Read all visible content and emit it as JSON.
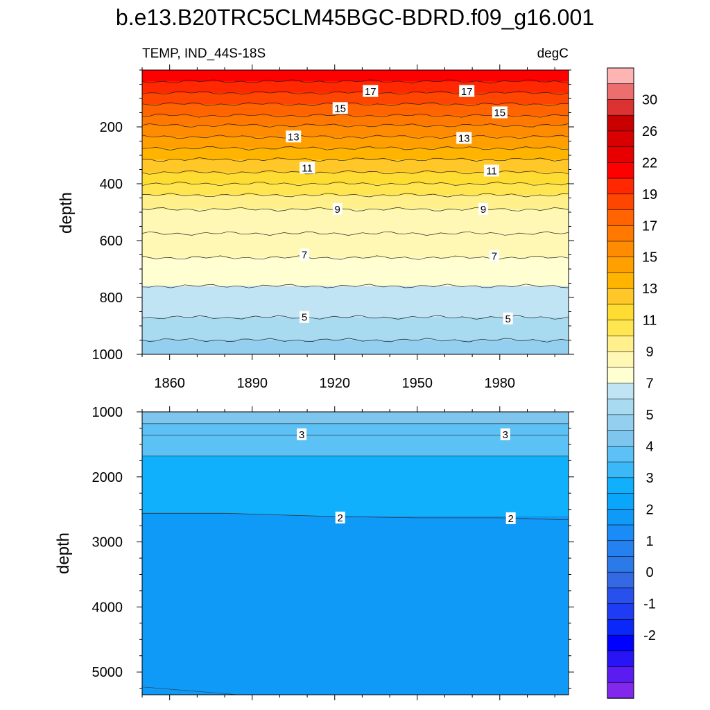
{
  "title": "b.e13.B20TRC5CLM45BGC-BDRD.f09_g16.001",
  "chart_data": [
    {
      "type": "heatmap",
      "panel": "upper",
      "variable_label": "TEMP, IND_44S-18S",
      "units_label": "degC",
      "ylabel": "depth",
      "xlim": [
        1850,
        2005
      ],
      "ylim": [
        0,
        1000
      ],
      "y_inverted": true,
      "x_ticks": [
        1860,
        1890,
        1920,
        1950,
        1980
      ],
      "y_ticks": [
        200,
        400,
        600,
        800,
        1000
      ],
      "fill_bands": [
        {
          "top": 0,
          "bottom": 40,
          "value": 19.5
        },
        {
          "top": 40,
          "bottom": 80,
          "value": 18.5
        },
        {
          "top": 80,
          "bottom": 120,
          "value": 17.5
        },
        {
          "top": 120,
          "bottom": 160,
          "value": 16.5
        },
        {
          "top": 160,
          "bottom": 195,
          "value": 15.5
        },
        {
          "top": 195,
          "bottom": 235,
          "value": 14.5
        },
        {
          "top": 235,
          "bottom": 275,
          "value": 13.5
        },
        {
          "top": 275,
          "bottom": 315,
          "value": 12.5
        },
        {
          "top": 315,
          "bottom": 360,
          "value": 11.5
        },
        {
          "top": 360,
          "bottom": 400,
          "value": 10.5
        },
        {
          "top": 400,
          "bottom": 440,
          "value": 9.5
        },
        {
          "top": 440,
          "bottom": 490,
          "value": 8.75
        },
        {
          "top": 490,
          "bottom": 575,
          "value": 8.0
        },
        {
          "top": 575,
          "bottom": 660,
          "value": 7.5
        },
        {
          "top": 660,
          "bottom": 760,
          "value": 6.5
        },
        {
          "top": 760,
          "bottom": 870,
          "value": 5.5
        },
        {
          "top": 870,
          "bottom": 950,
          "value": 4.75
        },
        {
          "top": 950,
          "bottom": 1000,
          "value": 4.25
        }
      ],
      "contour_depths": [
        40,
        80,
        120,
        160,
        195,
        235,
        275,
        315,
        360,
        400,
        440,
        490,
        575,
        660,
        760,
        870,
        950
      ],
      "contour_labels": [
        {
          "text": "17",
          "x": 1933,
          "depth": 75
        },
        {
          "text": "17",
          "x": 1968,
          "depth": 75
        },
        {
          "text": "15",
          "x": 1922,
          "depth": 135
        },
        {
          "text": "15",
          "x": 1980,
          "depth": 150
        },
        {
          "text": "13",
          "x": 1905,
          "depth": 235
        },
        {
          "text": "13",
          "x": 1967,
          "depth": 240
        },
        {
          "text": "11",
          "x": 1910,
          "depth": 345
        },
        {
          "text": "11",
          "x": 1977,
          "depth": 355
        },
        {
          "text": "9",
          "x": 1921,
          "depth": 490
        },
        {
          "text": "9",
          "x": 1974,
          "depth": 490
        },
        {
          "text": "7",
          "x": 1909,
          "depth": 650
        },
        {
          "text": "7",
          "x": 1978,
          "depth": 655
        },
        {
          "text": "5",
          "x": 1909,
          "depth": 870
        },
        {
          "text": "5",
          "x": 1983,
          "depth": 875
        }
      ]
    },
    {
      "type": "heatmap",
      "panel": "lower",
      "ylabel": "depth",
      "xlim": [
        1850,
        2005
      ],
      "ylim": [
        1000,
        5350
      ],
      "y_inverted": true,
      "y_ticks": [
        1000,
        2000,
        3000,
        4000,
        5000
      ],
      "fill_bands": [
        {
          "top": 1000,
          "bottom": 1180,
          "value": 3.75
        },
        {
          "top": 1180,
          "bottom": 1680,
          "value": 3.25
        },
        {
          "top": 1680,
          "bottom": 2600,
          "value": 2.5
        },
        {
          "top": 2600,
          "bottom": 5350,
          "value": 1.5
        }
      ],
      "contour_depths": [
        1180,
        1360,
        1680
      ],
      "two_degree_contour": [
        [
          1850,
          2560
        ],
        [
          1880,
          2560
        ],
        [
          1920,
          2610
        ],
        [
          1950,
          2630
        ],
        [
          1980,
          2630
        ],
        [
          2005,
          2660
        ]
      ],
      "bottom_contour": [
        [
          1850,
          5230
        ],
        [
          1885,
          5350
        ]
      ],
      "bottom_fill_value": 1.25,
      "contour_labels": [
        {
          "text": "3",
          "x": 1908,
          "depth": 1350
        },
        {
          "text": "3",
          "x": 1982,
          "depth": 1350
        },
        {
          "text": "2",
          "x": 1922,
          "depth": 2630
        },
        {
          "text": "2",
          "x": 1984,
          "depth": 2640
        }
      ]
    }
  ],
  "colorbar": {
    "colors": [
      "#ffb4b4",
      "#ec6e6e",
      "#dc3232",
      "#c80000",
      "#d80000",
      "#e80000",
      "#ff0000",
      "#ff2800",
      "#ff4600",
      "#ff6400",
      "#ff7800",
      "#ff8c00",
      "#ffa000",
      "#ffb400",
      "#ffc828",
      "#ffdc32",
      "#ffe650",
      "#fff08c",
      "#fff8b4",
      "#ffffd2",
      "#c0e4f4",
      "#a8daf0",
      "#94cff0",
      "#7ec6ee",
      "#5cc1f4",
      "#3ab8f8",
      "#10b0fc",
      "#0aa6fc",
      "#109af8",
      "#1a8cf8",
      "#2580f0",
      "#2b7ae8",
      "#3468e4",
      "#2850ec",
      "#1e3cf4",
      "#0a28f8",
      "#0000ff",
      "#2814f4",
      "#5a1cf0",
      "#8228ec"
    ],
    "value_stops": [
      30,
      28,
      26,
      24,
      22,
      20.5,
      19,
      18,
      17,
      16,
      15,
      14,
      13,
      12,
      11,
      10,
      9,
      8,
      7,
      6,
      5,
      4.5,
      4,
      3.5,
      3,
      2.5,
      2,
      1.5,
      1,
      0.5,
      0,
      -0.5,
      -1,
      -1.5,
      -2
    ],
    "labels": [
      "30",
      "26",
      "22",
      "19",
      "17",
      "15",
      "13",
      "11",
      "9",
      "7",
      "5",
      "4",
      "3",
      "2",
      "1",
      "0",
      "-1",
      "-2"
    ]
  }
}
